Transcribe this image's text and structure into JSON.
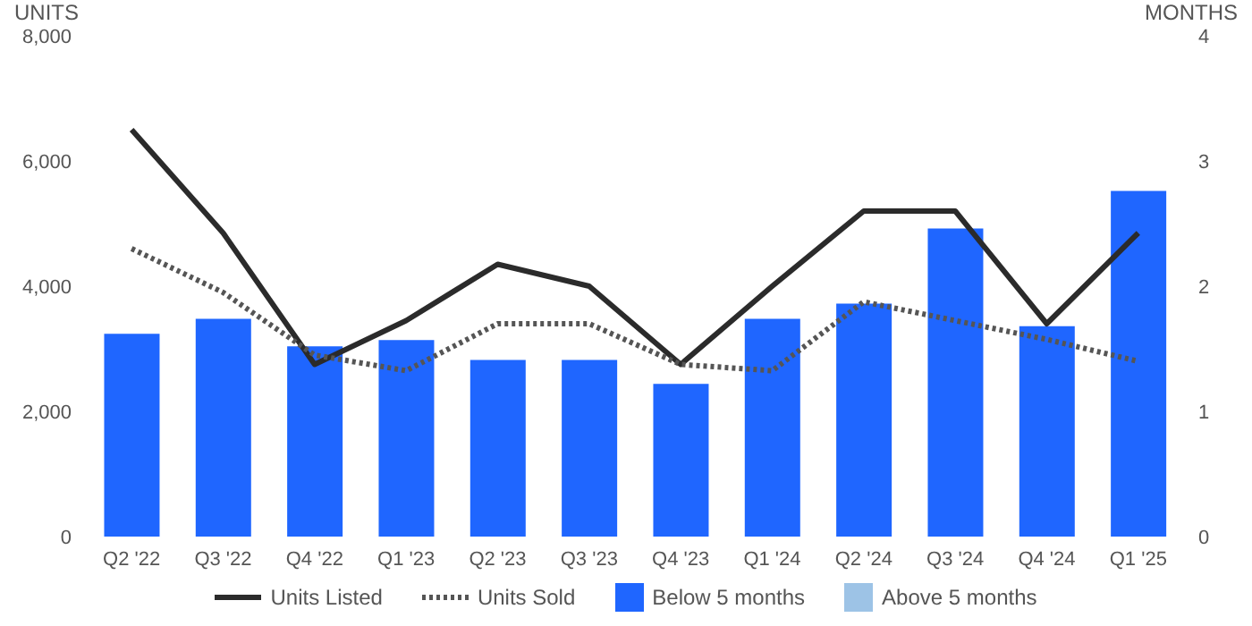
{
  "chart_data": {
    "type": "bar",
    "ylabel": "UNITS",
    "y2label": "MONTHS",
    "categories": [
      "Q2 '22",
      "Q3 '22",
      "Q4 '22",
      "Q1 '23",
      "Q2 '23",
      "Q3 '23",
      "Q4 '23",
      "Q1 '24",
      "Q2 '24",
      "Q3 '24",
      "Q4 '24",
      "Q1 '25"
    ],
    "series": [
      {
        "name": "Units Listed",
        "type": "line",
        "color": "#2b2b2b",
        "line_style": "solid",
        "values": [
          6500,
          4850,
          2750,
          3450,
          4350,
          4000,
          2750,
          4000,
          5200,
          5200,
          3400,
          4850
        ]
      },
      {
        "name": "Units Sold",
        "type": "line",
        "color": "#555555",
        "line_style": "dotted",
        "values": [
          4600,
          3900,
          2900,
          2650,
          3400,
          3400,
          2750,
          2650,
          3750,
          3450,
          3150,
          2800
        ]
      },
      {
        "name": "Below 5 months",
        "axis": "y2",
        "color": "#1f66ff",
        "values": [
          1.62,
          1.74,
          1.52,
          1.57,
          1.41,
          1.41,
          1.22,
          1.74,
          1.86,
          2.46,
          1.68,
          2.76
        ]
      },
      {
        "name": "Above 5 months",
        "axis": "y2",
        "color": "#9dc3e6",
        "values": [
          null,
          null,
          null,
          null,
          null,
          null,
          null,
          null,
          null,
          null,
          null,
          null
        ]
      }
    ],
    "stacked": true,
    "marker": "none",
    "grid": false,
    "legend": "bottom",
    "ylim": [
      0,
      8000
    ],
    "yticks": [
      0,
      {
        "value": 2000,
        "label": "2,000"
      },
      {
        "value": 4000,
        "label": "4,000"
      },
      {
        "value": 6000,
        "label": "6,000"
      },
      {
        "value": 8000,
        "label": "8,000"
      }
    ],
    "y2lim": [
      0,
      4
    ],
    "y2ticks": [
      0,
      1,
      2,
      3,
      4
    ]
  }
}
